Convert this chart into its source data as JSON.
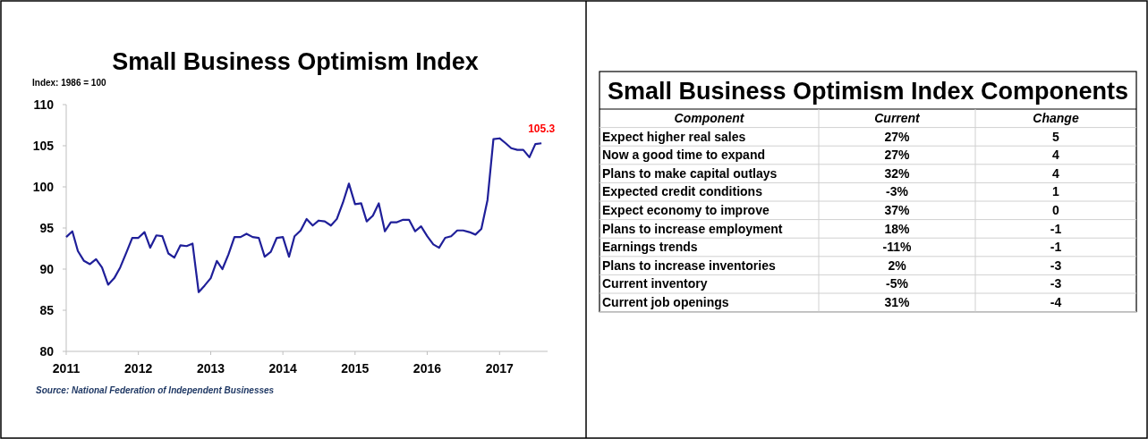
{
  "chart_data": [
    {
      "type": "line",
      "title": "Small Business Optimism Index",
      "ylabel": "Index: 1986 = 100",
      "x": [
        "2011-01",
        "2011-02",
        "2011-03",
        "2011-04",
        "2011-05",
        "2011-06",
        "2011-07",
        "2011-08",
        "2011-09",
        "2011-10",
        "2011-11",
        "2011-12",
        "2012-01",
        "2012-02",
        "2012-03",
        "2012-04",
        "2012-05",
        "2012-06",
        "2012-07",
        "2012-08",
        "2012-09",
        "2012-10",
        "2012-11",
        "2012-12",
        "2013-01",
        "2013-02",
        "2013-03",
        "2013-04",
        "2013-05",
        "2013-06",
        "2013-07",
        "2013-08",
        "2013-09",
        "2013-10",
        "2013-11",
        "2013-12",
        "2014-01",
        "2014-02",
        "2014-03",
        "2014-04",
        "2014-05",
        "2014-06",
        "2014-07",
        "2014-08",
        "2014-09",
        "2014-10",
        "2014-11",
        "2014-12",
        "2015-01",
        "2015-02",
        "2015-03",
        "2015-04",
        "2015-05",
        "2015-06",
        "2015-07",
        "2015-08",
        "2015-09",
        "2015-10",
        "2015-11",
        "2015-12",
        "2016-01",
        "2016-02",
        "2016-03",
        "2016-04",
        "2016-05",
        "2016-06",
        "2016-07",
        "2016-08",
        "2016-09",
        "2016-10",
        "2016-11",
        "2016-12",
        "2017-01",
        "2017-02",
        "2017-03",
        "2017-04",
        "2017-05",
        "2017-06",
        "2017-07",
        "2017-08"
      ],
      "series": [
        {
          "color": "#1f1f99",
          "values": [
            93.9,
            94.6,
            92.2,
            91.0,
            90.6,
            91.2,
            90.2,
            88.1,
            88.9,
            90.2,
            92.0,
            93.8,
            93.8,
            94.5,
            92.6,
            94.1,
            94.0,
            91.9,
            91.4,
            92.9,
            92.8,
            93.1,
            87.2,
            88.0,
            88.9,
            91.0,
            90.0,
            91.8,
            93.9,
            93.9,
            94.3,
            93.9,
            93.8,
            91.5,
            92.1,
            93.8,
            93.9,
            91.5,
            94.0,
            94.7,
            96.1,
            95.3,
            95.9,
            95.8,
            95.3,
            96.1,
            98.1,
            100.4,
            97.9,
            98.0,
            95.8,
            96.5,
            98.0,
            94.6,
            95.7,
            95.7,
            96.0,
            96.0,
            94.6,
            95.2,
            94.0,
            93.0,
            92.6,
            93.8,
            94.0,
            94.7,
            94.7,
            94.5,
            94.2,
            94.9,
            98.4,
            105.8,
            105.9,
            105.3,
            104.7,
            104.5,
            104.5,
            103.6,
            105.2,
            105.3
          ]
        }
      ],
      "xlim": [
        "2011-01",
        "2017-09"
      ],
      "xticks": [
        "2011",
        "2012",
        "2013",
        "2014",
        "2015",
        "2016",
        "2017"
      ],
      "ylim": [
        80,
        110
      ],
      "yticks": [
        80,
        85,
        90,
        95,
        100,
        105,
        110
      ],
      "grid": false,
      "annotations": [
        {
          "text": "105.3",
          "x": "2017-08",
          "y": 105.3
        },
        "Source: National Federation of Independent Businesses"
      ]
    },
    {
      "type": "other",
      "title": "Small Business Optimism Index Components",
      "xlabel": "Component",
      "data_labels": true,
      "categories": [
        "Expect higher real sales",
        "Now a good time to expand",
        "Plans to make capital outlays",
        "Expected credit conditions",
        "Expect economy to improve",
        "Plans to increase employment",
        "Earnings trends",
        "Plans to increase inventories",
        "Current inventory",
        "Current job openings"
      ],
      "series": [
        {
          "name": "Current",
          "values": [
            27,
            27,
            32,
            -3,
            37,
            18,
            -11,
            2,
            -5,
            31
          ],
          "value_labels": [
            "27%",
            "27%",
            "32%",
            "-3%",
            "37%",
            "18%",
            "-11%",
            "2%",
            "-5%",
            "31%"
          ]
        },
        {
          "name": "Change",
          "values": [
            5,
            4,
            4,
            1,
            0,
            -1,
            -1,
            -3,
            -3,
            -4
          ]
        }
      ]
    }
  ]
}
